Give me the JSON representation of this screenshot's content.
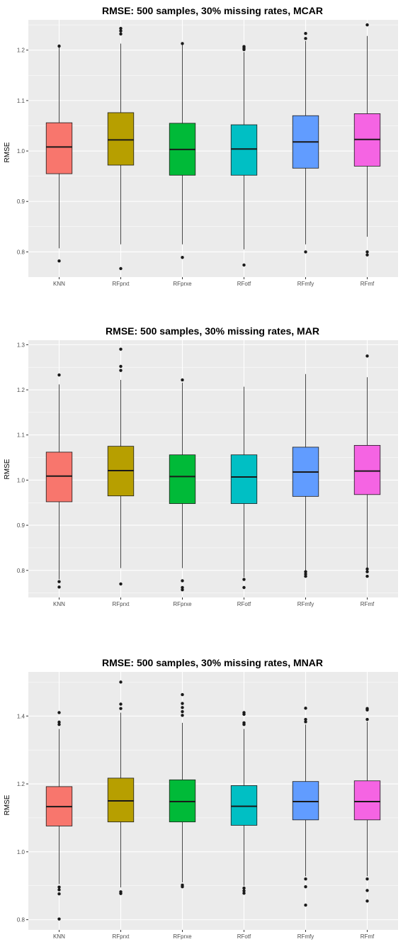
{
  "chart_data": [
    {
      "type": "boxplot",
      "title": "RMSE: 500 samples, 30% missing rates, MCAR",
      "xlabel": "",
      "ylabel": "RMSE",
      "ylim": [
        0.75,
        1.26
      ],
      "yticks": [
        0.8,
        0.9,
        1.0,
        1.1,
        1.2
      ],
      "ytick_labels": [
        "0.8",
        "0.9",
        "1.0",
        "1.1",
        "1.2"
      ],
      "grid": true,
      "categories": [
        "KNN",
        "RFprxt",
        "RFprxe",
        "RFotf",
        "RFmfy",
        "RFmf"
      ],
      "boxes": [
        {
          "min": 0.807,
          "q1": 0.955,
          "median": 1.008,
          "q3": 1.056,
          "max": 1.206,
          "outliers": [
            0.782,
            1.208
          ]
        },
        {
          "min": 0.815,
          "q1": 0.972,
          "median": 1.022,
          "q3": 1.076,
          "max": 1.213,
          "outliers": [
            0.767,
            1.232,
            1.238,
            1.243
          ]
        },
        {
          "min": 0.815,
          "q1": 0.952,
          "median": 1.003,
          "q3": 1.055,
          "max": 1.21,
          "outliers": [
            0.789,
            1.213
          ]
        },
        {
          "min": 0.805,
          "q1": 0.952,
          "median": 1.004,
          "q3": 1.052,
          "max": 1.196,
          "outliers": [
            0.774,
            1.201,
            1.204,
            1.207
          ]
        },
        {
          "min": 0.815,
          "q1": 0.966,
          "median": 1.018,
          "q3": 1.07,
          "max": 1.218,
          "outliers": [
            0.8,
            1.223,
            1.233
          ]
        },
        {
          "min": 0.83,
          "q1": 0.97,
          "median": 1.023,
          "q3": 1.074,
          "max": 1.228,
          "outliers": [
            0.794,
            0.8,
            1.25
          ]
        }
      ]
    },
    {
      "type": "boxplot",
      "title": "RMSE: 500 samples, 30% missing rates, MAR",
      "xlabel": "",
      "ylabel": "RMSE",
      "ylim": [
        0.74,
        1.31
      ],
      "yticks": [
        0.8,
        0.9,
        1.0,
        1.1,
        1.2,
        1.3
      ],
      "ytick_labels": [
        "0.8",
        "0.9",
        "1.0",
        "1.1",
        "1.2",
        "1.3"
      ],
      "grid": true,
      "categories": [
        "KNN",
        "RFprxt",
        "RFprxe",
        "RFotf",
        "RFmfy",
        "RFmf"
      ],
      "boxes": [
        {
          "min": 0.78,
          "q1": 0.952,
          "median": 1.009,
          "q3": 1.062,
          "max": 1.212,
          "outliers": [
            0.763,
            0.775,
            1.233
          ]
        },
        {
          "min": 0.805,
          "q1": 0.965,
          "median": 1.021,
          "q3": 1.075,
          "max": 1.222,
          "outliers": [
            0.77,
            1.243,
            1.252,
            1.29
          ]
        },
        {
          "min": 0.805,
          "q1": 0.948,
          "median": 1.008,
          "q3": 1.056,
          "max": 1.216,
          "outliers": [
            0.757,
            0.762,
            0.777,
            1.222
          ]
        },
        {
          "min": 0.785,
          "q1": 0.948,
          "median": 1.007,
          "q3": 1.056,
          "max": 1.207,
          "outliers": [
            0.762,
            0.78
          ]
        },
        {
          "min": 0.8,
          "q1": 0.964,
          "median": 1.018,
          "q3": 1.073,
          "max": 1.235,
          "outliers": [
            0.787,
            0.792,
            0.797
          ]
        },
        {
          "min": 0.805,
          "q1": 0.968,
          "median": 1.02,
          "q3": 1.077,
          "max": 1.228,
          "outliers": [
            0.787,
            0.797,
            0.803,
            1.275
          ]
        }
      ]
    },
    {
      "type": "boxplot",
      "title": "RMSE: 500 samples, 30% missing rates, MNAR",
      "xlabel": "",
      "ylabel": "RMSE",
      "ylim": [
        0.77,
        1.53
      ],
      "yticks": [
        0.8,
        1.0,
        1.2,
        1.4
      ],
      "ytick_labels": [
        "0.8",
        "1.0",
        "1.2",
        "1.4"
      ],
      "grid": true,
      "categories": [
        "KNN",
        "RFprxt",
        "RFprxe",
        "RFotf",
        "RFmfy",
        "RFmf"
      ],
      "boxes": [
        {
          "min": 0.905,
          "q1": 1.076,
          "median": 1.133,
          "q3": 1.192,
          "max": 1.362,
          "outliers": [
            0.802,
            0.876,
            0.888,
            0.896,
            1.375,
            1.382,
            1.41
          ]
        },
        {
          "min": 0.895,
          "q1": 1.088,
          "median": 1.15,
          "q3": 1.217,
          "max": 1.41,
          "outliers": [
            0.877,
            0.882,
            1.422,
            1.435,
            1.5
          ]
        },
        {
          "min": 0.91,
          "q1": 1.088,
          "median": 1.148,
          "q3": 1.212,
          "max": 1.38,
          "outliers": [
            0.897,
            0.902,
            1.402,
            1.413,
            1.425,
            1.437,
            1.463
          ]
        },
        {
          "min": 0.9,
          "q1": 1.078,
          "median": 1.134,
          "q3": 1.195,
          "max": 1.362,
          "outliers": [
            0.878,
            0.885,
            0.893,
            1.375,
            1.38,
            1.405,
            1.41
          ]
        },
        {
          "min": 0.928,
          "q1": 1.094,
          "median": 1.148,
          "q3": 1.207,
          "max": 1.375,
          "outliers": [
            0.843,
            0.897,
            0.92,
            1.383,
            1.39,
            1.423
          ]
        },
        {
          "min": 0.928,
          "q1": 1.094,
          "median": 1.148,
          "q3": 1.209,
          "max": 1.383,
          "outliers": [
            0.855,
            0.886,
            0.92,
            1.39,
            1.418,
            1.422
          ]
        }
      ]
    }
  ],
  "colors": {
    "panel_bg": "#ebebeb",
    "grid": "#ffffff",
    "outline": "#1a1a1a",
    "tick_text": "#4d4d4d",
    "series": [
      "#f8766d",
      "#b79f00",
      "#00ba38",
      "#00bfc4",
      "#619cff",
      "#f564e3"
    ]
  }
}
